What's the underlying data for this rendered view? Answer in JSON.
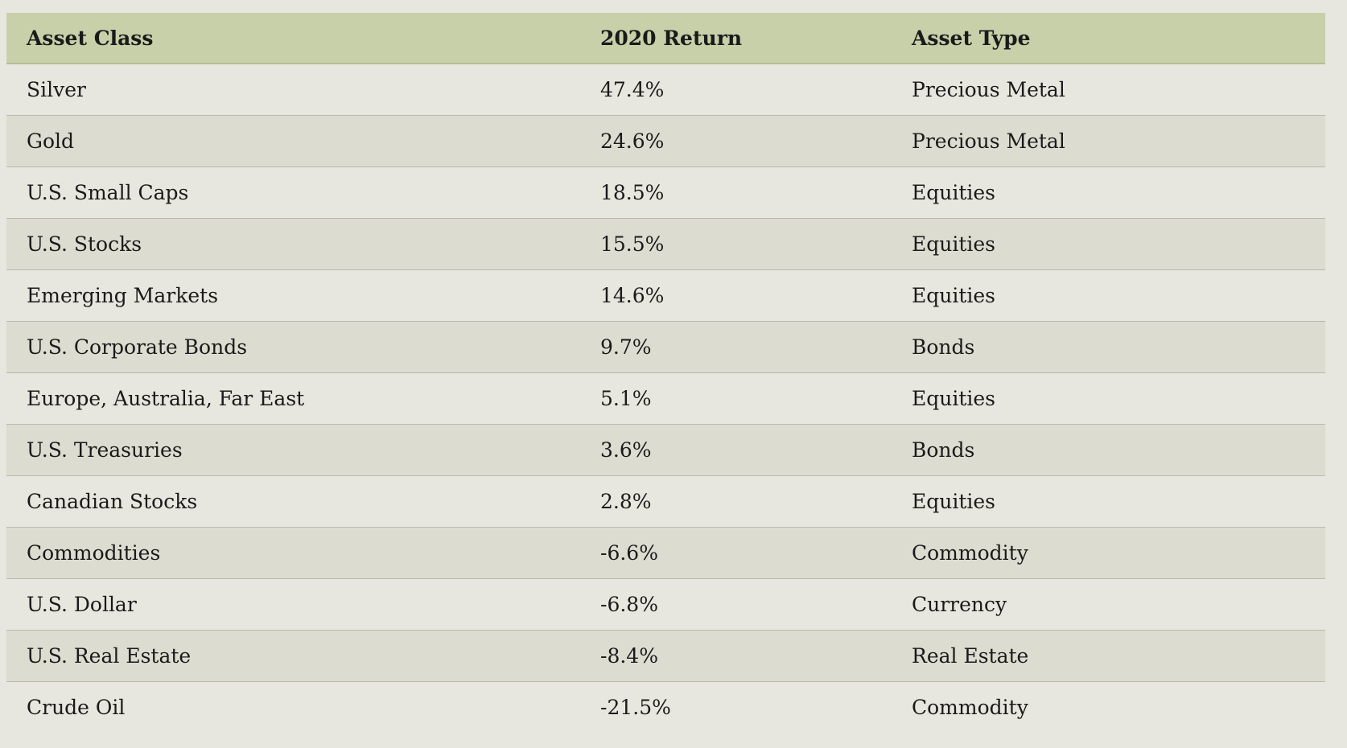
{
  "table": {
    "header": [
      "Asset Class",
      "2020 Return",
      "Asset Type"
    ],
    "rows": [
      [
        "Silver",
        "47.4%",
        "Precious Metal"
      ],
      [
        "Gold",
        "24.6%",
        "Precious Metal"
      ],
      [
        "U.S. Small Caps",
        "18.5%",
        "Equities"
      ],
      [
        "U.S. Stocks",
        "15.5%",
        "Equities"
      ],
      [
        "Emerging Markets",
        "14.6%",
        "Equities"
      ],
      [
        "U.S. Corporate Bonds",
        "9.7%",
        "Bonds"
      ],
      [
        "Europe, Australia, Far East",
        "5.1%",
        "Equities"
      ],
      [
        "U.S. Treasuries",
        "3.6%",
        "Bonds"
      ],
      [
        "Canadian Stocks",
        "2.8%",
        "Equities"
      ],
      [
        "Commodities",
        "-6.6%",
        "Commodity"
      ],
      [
        "U.S. Dollar",
        "-6.8%",
        "Currency"
      ],
      [
        "U.S. Real Estate",
        "-8.4%",
        "Real Estate"
      ],
      [
        "Crude Oil",
        "-21.5%",
        "Commodity"
      ]
    ]
  }
}
